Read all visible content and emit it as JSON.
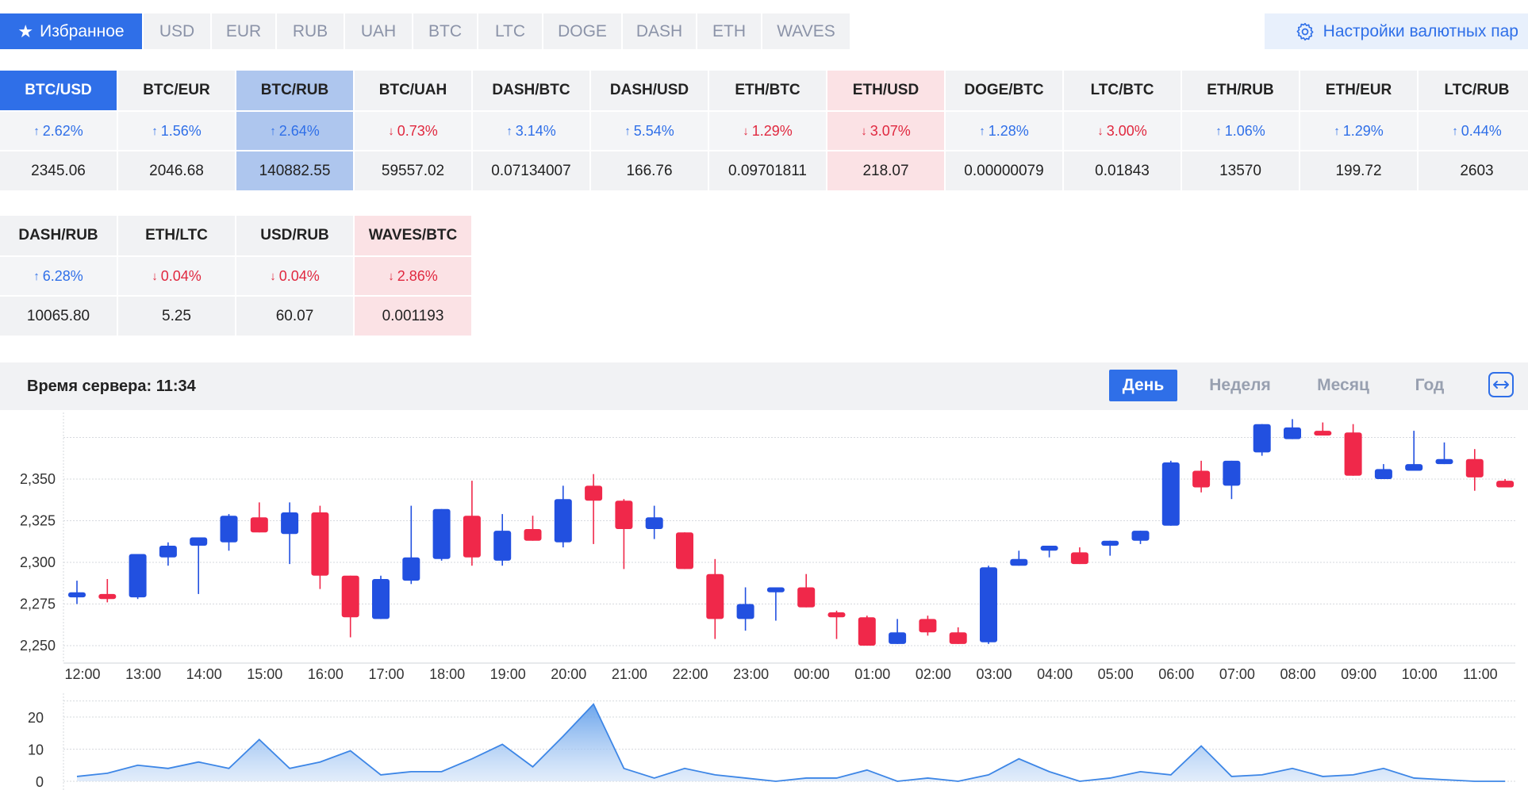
{
  "tabs": [
    {
      "label": "Избранное",
      "active": true
    },
    {
      "label": "USD"
    },
    {
      "label": "EUR"
    },
    {
      "label": "RUB"
    },
    {
      "label": "UAH"
    },
    {
      "label": "BTC"
    },
    {
      "label": "LTC"
    },
    {
      "label": "DOGE"
    },
    {
      "label": "DASH"
    },
    {
      "label": "ETH"
    },
    {
      "label": "WAVES"
    }
  ],
  "settings_label": "Настройки валютных пар",
  "pairs_row1": [
    {
      "name": "BTC/USD",
      "change": "2.62%",
      "dir": "up",
      "price": "2345.06",
      "state": "selected"
    },
    {
      "name": "BTC/EUR",
      "change": "1.56%",
      "dir": "up",
      "price": "2046.68",
      "state": ""
    },
    {
      "name": "BTC/RUB",
      "change": "2.64%",
      "dir": "up",
      "price": "140882.55",
      "state": "hl-blue"
    },
    {
      "name": "BTC/UAH",
      "change": "0.73%",
      "dir": "down",
      "price": "59557.02",
      "state": ""
    },
    {
      "name": "DASH/BTC",
      "change": "3.14%",
      "dir": "up",
      "price": "0.07134007",
      "state": ""
    },
    {
      "name": "DASH/USD",
      "change": "5.54%",
      "dir": "up",
      "price": "166.76",
      "state": ""
    },
    {
      "name": "ETH/BTC",
      "change": "1.29%",
      "dir": "down",
      "price": "0.09701811",
      "state": ""
    },
    {
      "name": "ETH/USD",
      "change": "3.07%",
      "dir": "down",
      "price": "218.07",
      "state": "hl-red"
    },
    {
      "name": "DOGE/BTC",
      "change": "1.28%",
      "dir": "up",
      "price": "0.00000079",
      "state": ""
    },
    {
      "name": "LTC/BTC",
      "change": "3.00%",
      "dir": "down",
      "price": "0.01843",
      "state": ""
    },
    {
      "name": "ETH/RUB",
      "change": "1.06%",
      "dir": "up",
      "price": "13570",
      "state": ""
    },
    {
      "name": "ETH/EUR",
      "change": "1.29%",
      "dir": "up",
      "price": "199.72",
      "state": ""
    },
    {
      "name": "LTC/RUB",
      "change": "0.44%",
      "dir": "up",
      "price": "2603",
      "state": ""
    }
  ],
  "pairs_row2": [
    {
      "name": "DASH/RUB",
      "change": "6.28%",
      "dir": "up",
      "price": "10065.80",
      "state": ""
    },
    {
      "name": "ETH/LTC",
      "change": "0.04%",
      "dir": "down",
      "price": "5.25",
      "state": ""
    },
    {
      "name": "USD/RUB",
      "change": "0.04%",
      "dir": "down",
      "price": "60.07",
      "state": ""
    },
    {
      "name": "WAVES/BTC",
      "change": "2.86%",
      "dir": "down",
      "price": "0.001193",
      "state": "hl-red"
    }
  ],
  "server_time": "Время сервера: 11:34",
  "periods": [
    {
      "label": "День",
      "active": true
    },
    {
      "label": "Неделя"
    },
    {
      "label": "Месяц"
    },
    {
      "label": "Год"
    }
  ],
  "colors": {
    "up": "#2250e0",
    "down": "#f0284a",
    "accent": "#2f6fe8"
  },
  "chart_data": [
    {
      "type": "candlestick",
      "ylim": [
        2245,
        2390
      ],
      "y_ticks": [
        2250,
        2275,
        2300,
        2325,
        2350
      ],
      "y_tick_labels": [
        "2,250",
        "2,275",
        "2,300",
        "2,325",
        "2,350"
      ],
      "x_tick_labels": [
        "12:00",
        "13:00",
        "14:00",
        "15:00",
        "16:00",
        "17:00",
        "18:00",
        "19:00",
        "20:00",
        "21:00",
        "22:00",
        "23:00",
        "00:00",
        "01:00",
        "02:00",
        "03:00",
        "04:00",
        "05:00",
        "06:00",
        "07:00",
        "08:00",
        "09:00",
        "10:00",
        "11:00"
      ],
      "grid": true,
      "candles": [
        {
          "t": "12:00",
          "o": 2279,
          "c": 2282,
          "h": 2289,
          "l": 2275
        },
        {
          "t": "12:30",
          "o": 2281,
          "c": 2278,
          "h": 2290,
          "l": 2276
        },
        {
          "t": "13:00",
          "o": 2279,
          "c": 2305,
          "h": 2305,
          "l": 2278
        },
        {
          "t": "13:30",
          "o": 2303,
          "c": 2310,
          "h": 2312,
          "l": 2298
        },
        {
          "t": "14:00",
          "o": 2310,
          "c": 2315,
          "h": 2315,
          "l": 2281
        },
        {
          "t": "14:30",
          "o": 2312,
          "c": 2328,
          "h": 2329,
          "l": 2307
        },
        {
          "t": "15:00",
          "o": 2327,
          "c": 2318,
          "h": 2336,
          "l": 2318
        },
        {
          "t": "15:30",
          "o": 2317,
          "c": 2330,
          "h": 2336,
          "l": 2299
        },
        {
          "t": "16:00",
          "o": 2330,
          "c": 2292,
          "h": 2334,
          "l": 2284
        },
        {
          "t": "16:30",
          "o": 2292,
          "c": 2267,
          "h": 2292,
          "l": 2255
        },
        {
          "t": "17:00",
          "o": 2266,
          "c": 2290,
          "h": 2292,
          "l": 2266
        },
        {
          "t": "17:30",
          "o": 2289,
          "c": 2303,
          "h": 2334,
          "l": 2287
        },
        {
          "t": "18:00",
          "o": 2302,
          "c": 2332,
          "h": 2332,
          "l": 2301
        },
        {
          "t": "18:30",
          "o": 2328,
          "c": 2303,
          "h": 2349,
          "l": 2298
        },
        {
          "t": "19:00",
          "o": 2301,
          "c": 2319,
          "h": 2329,
          "l": 2298
        },
        {
          "t": "19:30",
          "o": 2320,
          "c": 2313,
          "h": 2328,
          "l": 2313
        },
        {
          "t": "20:00",
          "o": 2312,
          "c": 2338,
          "h": 2346,
          "l": 2309
        },
        {
          "t": "20:30",
          "o": 2346,
          "c": 2337,
          "h": 2353,
          "l": 2311
        },
        {
          "t": "21:00",
          "o": 2337,
          "c": 2320,
          "h": 2338,
          "l": 2296
        },
        {
          "t": "21:30",
          "o": 2320,
          "c": 2327,
          "h": 2334,
          "l": 2314
        },
        {
          "t": "22:00",
          "o": 2318,
          "c": 2296,
          "h": 2318,
          "l": 2296
        },
        {
          "t": "22:30",
          "o": 2293,
          "c": 2266,
          "h": 2302,
          "l": 2254
        },
        {
          "t": "23:00",
          "o": 2266,
          "c": 2275,
          "h": 2285,
          "l": 2259
        },
        {
          "t": "23:30",
          "o": 2282,
          "c": 2285,
          "h": 2285,
          "l": 2265
        },
        {
          "t": "00:00",
          "o": 2285,
          "c": 2273,
          "h": 2293,
          "l": 2273
        },
        {
          "t": "00:30",
          "o": 2270,
          "c": 2267,
          "h": 2271,
          "l": 2254
        },
        {
          "t": "01:00",
          "o": 2267,
          "c": 2250,
          "h": 2268,
          "l": 2250
        },
        {
          "t": "01:30",
          "o": 2251,
          "c": 2258,
          "h": 2266,
          "l": 2251
        },
        {
          "t": "02:00",
          "o": 2266,
          "c": 2258,
          "h": 2268,
          "l": 2256
        },
        {
          "t": "02:30",
          "o": 2258,
          "c": 2251,
          "h": 2261,
          "l": 2251
        },
        {
          "t": "03:00",
          "o": 2252,
          "c": 2297,
          "h": 2298,
          "l": 2251
        },
        {
          "t": "03:30",
          "o": 2298,
          "c": 2302,
          "h": 2307,
          "l": 2298
        },
        {
          "t": "04:00",
          "o": 2307,
          "c": 2310,
          "h": 2310,
          "l": 2303
        },
        {
          "t": "04:30",
          "o": 2306,
          "c": 2299,
          "h": 2309,
          "l": 2299
        },
        {
          "t": "05:00",
          "o": 2310,
          "c": 2313,
          "h": 2313,
          "l": 2304
        },
        {
          "t": "05:30",
          "o": 2313,
          "c": 2319,
          "h": 2319,
          "l": 2311
        },
        {
          "t": "06:00",
          "o": 2322,
          "c": 2360,
          "h": 2361,
          "l": 2322
        },
        {
          "t": "06:30",
          "o": 2355,
          "c": 2345,
          "h": 2361,
          "l": 2342
        },
        {
          "t": "07:00",
          "o": 2346,
          "c": 2361,
          "h": 2361,
          "l": 2338
        },
        {
          "t": "07:30",
          "o": 2366,
          "c": 2383,
          "h": 2383,
          "l": 2364
        },
        {
          "t": "08:00",
          "o": 2374,
          "c": 2381,
          "h": 2386,
          "l": 2374
        },
        {
          "t": "08:30",
          "o": 2379,
          "c": 2377,
          "h": 2384,
          "l": 2377
        },
        {
          "t": "09:00",
          "o": 2378,
          "c": 2352,
          "h": 2383,
          "l": 2352
        },
        {
          "t": "09:30",
          "o": 2350,
          "c": 2356,
          "h": 2359,
          "l": 2350
        },
        {
          "t": "10:00",
          "o": 2355,
          "c": 2359,
          "h": 2379,
          "l": 2355
        },
        {
          "t": "10:30",
          "o": 2359,
          "c": 2362,
          "h": 2372,
          "l": 2359
        },
        {
          "t": "11:00",
          "o": 2362,
          "c": 2351,
          "h": 2368,
          "l": 2343
        },
        {
          "t": "11:30",
          "o": 2349,
          "c": 2345,
          "h": 2350,
          "l": 2345
        }
      ]
    },
    {
      "type": "area",
      "ylim": [
        0,
        25
      ],
      "y_ticks": [
        0,
        10,
        20
      ],
      "y_tick_labels": [
        "0",
        "10",
        "20"
      ],
      "grid": true,
      "values": [
        1.5,
        2.5,
        5,
        4,
        6,
        4,
        13,
        4,
        6,
        9.5,
        2,
        3,
        3,
        7,
        11.5,
        4.5,
        14,
        24,
        4,
        1,
        4,
        2,
        1,
        0,
        1,
        1,
        3.5,
        0,
        1,
        0,
        2,
        7,
        3,
        0,
        1,
        3,
        2,
        11,
        1.5,
        2,
        4,
        1.5,
        2,
        4,
        1,
        0.5,
        0,
        0
      ]
    }
  ]
}
